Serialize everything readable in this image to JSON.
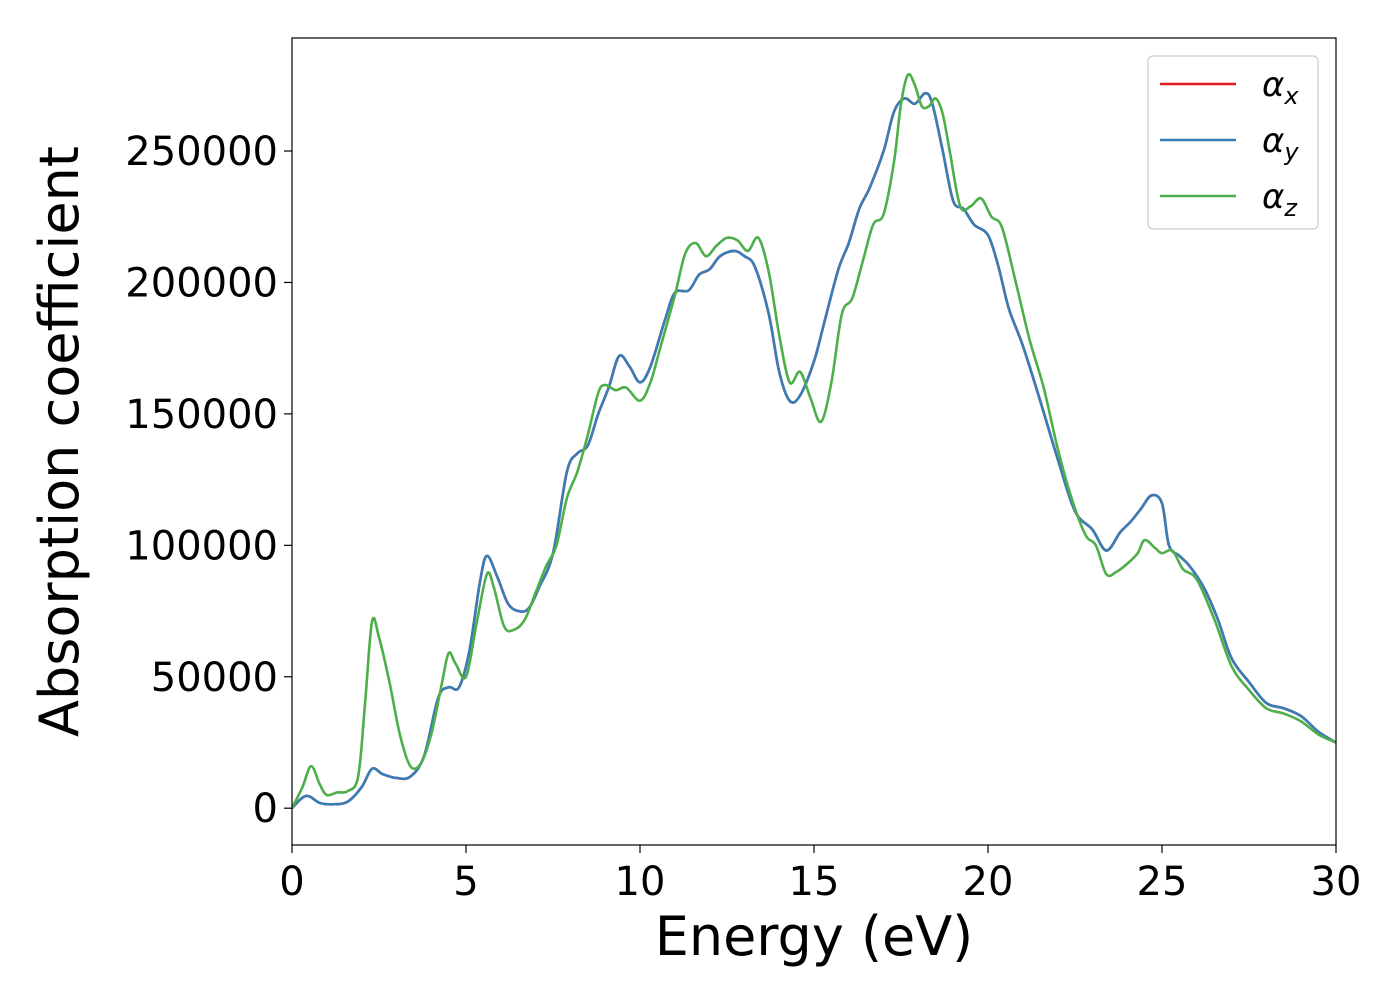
{
  "chart_data": {
    "type": "line",
    "title": "",
    "xlabel": "Energy (eV)",
    "ylabel": "Absorption coefficient",
    "xlim": [
      0,
      30
    ],
    "ylim": [
      -14000,
      293000
    ],
    "xticks": [
      0,
      5,
      10,
      15,
      20,
      25,
      30
    ],
    "yticks": [
      0,
      50000,
      100000,
      150000,
      200000,
      250000
    ],
    "xtick_labels": [
      "0",
      "5",
      "10",
      "15",
      "20",
      "25",
      "30"
    ],
    "ytick_labels": [
      "0",
      "50000",
      "100000",
      "150000",
      "200000",
      "250000"
    ],
    "grid": false,
    "legend_position": "top-right",
    "series": [
      {
        "name": "α",
        "subscript": "x",
        "color": "#e41a1c",
        "x": [
          0,
          0.3,
          0.5,
          0.8,
          1.2,
          1.6,
          2.0,
          2.3,
          2.6,
          3.0,
          3.4,
          3.8,
          4.2,
          4.5,
          4.8,
          5.1,
          5.4,
          5.6,
          5.9,
          6.2,
          6.5,
          6.8,
          7.1,
          7.5,
          7.9,
          8.2,
          8.5,
          8.8,
          9.1,
          9.4,
          9.7,
          10.0,
          10.3,
          10.7,
          11.0,
          11.4,
          11.7,
          12.0,
          12.3,
          12.7,
          13.0,
          13.3,
          13.7,
          14.0,
          14.3,
          14.6,
          15.0,
          15.3,
          15.7,
          16.0,
          16.3,
          16.6,
          17.0,
          17.3,
          17.6,
          17.9,
          18.2,
          18.4,
          18.7,
          19.0,
          19.3,
          19.6,
          20.0,
          20.3,
          20.6,
          21.0,
          21.5,
          22.0,
          22.5,
          23.0,
          23.4,
          23.8,
          24.1,
          24.4,
          24.7,
          25.0,
          25.2,
          25.5,
          25.8,
          26.2,
          26.6,
          27.0,
          27.5,
          28.0,
          28.5,
          29.0,
          29.5,
          30.0
        ],
        "values": [
          0,
          4000,
          4500,
          2000,
          1500,
          2500,
          8000,
          15000,
          13000,
          11500,
          12000,
          20000,
          42000,
          46000,
          46000,
          60000,
          86000,
          96000,
          88000,
          78000,
          75000,
          76000,
          84000,
          97000,
          128000,
          135000,
          138000,
          150000,
          160000,
          172000,
          168000,
          162000,
          168000,
          185000,
          196000,
          197000,
          203000,
          205000,
          210000,
          212000,
          210000,
          206000,
          188000,
          166000,
          155000,
          157000,
          170000,
          185000,
          205000,
          215000,
          228000,
          236000,
          250000,
          265000,
          270000,
          268000,
          272000,
          268000,
          250000,
          231000,
          228000,
          222000,
          218000,
          206000,
          190000,
          176000,
          155000,
          133000,
          113000,
          106000,
          98000,
          105000,
          109000,
          114000,
          119000,
          116000,
          100000,
          96000,
          92000,
          84000,
          72000,
          57000,
          48000,
          40000,
          38000,
          35000,
          29000,
          25000
        ]
      },
      {
        "name": "α",
        "subscript": "y",
        "color": "#377eb8",
        "x": [
          0,
          0.3,
          0.5,
          0.8,
          1.2,
          1.6,
          2.0,
          2.3,
          2.6,
          3.0,
          3.4,
          3.8,
          4.2,
          4.5,
          4.8,
          5.1,
          5.4,
          5.6,
          5.9,
          6.2,
          6.5,
          6.8,
          7.1,
          7.5,
          7.9,
          8.2,
          8.5,
          8.8,
          9.1,
          9.4,
          9.7,
          10.0,
          10.3,
          10.7,
          11.0,
          11.4,
          11.7,
          12.0,
          12.3,
          12.7,
          13.0,
          13.3,
          13.7,
          14.0,
          14.3,
          14.6,
          15.0,
          15.3,
          15.7,
          16.0,
          16.3,
          16.6,
          17.0,
          17.3,
          17.6,
          17.9,
          18.2,
          18.4,
          18.7,
          19.0,
          19.3,
          19.6,
          20.0,
          20.3,
          20.6,
          21.0,
          21.5,
          22.0,
          22.5,
          23.0,
          23.4,
          23.8,
          24.1,
          24.4,
          24.7,
          25.0,
          25.2,
          25.5,
          25.8,
          26.2,
          26.6,
          27.0,
          27.5,
          28.0,
          28.5,
          29.0,
          29.5,
          30.0
        ],
        "values": [
          0,
          4000,
          4500,
          2000,
          1500,
          2500,
          8000,
          15000,
          13000,
          11500,
          12000,
          20000,
          42000,
          46000,
          46000,
          60000,
          86000,
          96000,
          88000,
          78000,
          75000,
          76000,
          84000,
          97000,
          128000,
          135000,
          138000,
          150000,
          160000,
          172000,
          168000,
          162000,
          168000,
          185000,
          196000,
          197000,
          203000,
          205000,
          210000,
          212000,
          210000,
          206000,
          188000,
          166000,
          155000,
          157000,
          170000,
          185000,
          205000,
          215000,
          228000,
          236000,
          250000,
          265000,
          270000,
          268000,
          272000,
          268000,
          250000,
          231000,
          228000,
          222000,
          218000,
          206000,
          190000,
          176000,
          155000,
          133000,
          113000,
          106000,
          98000,
          105000,
          109000,
          114000,
          119000,
          116000,
          100000,
          96000,
          92000,
          84000,
          72000,
          57000,
          48000,
          40000,
          38000,
          35000,
          29000,
          25000
        ]
      },
      {
        "name": "α",
        "subscript": "z",
        "color": "#4daf4a",
        "x": [
          0,
          0.3,
          0.55,
          0.8,
          1.0,
          1.3,
          1.6,
          1.9,
          2.1,
          2.3,
          2.5,
          2.8,
          3.1,
          3.4,
          3.7,
          4.0,
          4.3,
          4.5,
          4.7,
          5.0,
          5.3,
          5.6,
          5.8,
          6.1,
          6.4,
          6.7,
          7.0,
          7.3,
          7.6,
          7.9,
          8.2,
          8.5,
          8.8,
          9.0,
          9.3,
          9.6,
          10.0,
          10.3,
          10.6,
          11.0,
          11.3,
          11.6,
          11.9,
          12.2,
          12.5,
          12.8,
          13.1,
          13.4,
          13.7,
          14.0,
          14.3,
          14.6,
          14.9,
          15.2,
          15.5,
          15.8,
          16.1,
          16.4,
          16.7,
          17.0,
          17.3,
          17.5,
          17.7,
          17.9,
          18.1,
          18.3,
          18.5,
          18.7,
          18.9,
          19.2,
          19.5,
          19.8,
          20.1,
          20.4,
          20.8,
          21.2,
          21.6,
          22.0,
          22.4,
          22.8,
          23.1,
          23.4,
          23.7,
          24.0,
          24.3,
          24.5,
          24.8,
          25.0,
          25.3,
          25.6,
          26.0,
          26.5,
          27.0,
          27.5,
          28.0,
          28.5,
          29.0,
          29.5,
          30.0
        ],
        "values": [
          0,
          8000,
          16000,
          9000,
          5000,
          6000,
          6500,
          12000,
          40000,
          71000,
          65000,
          48000,
          28000,
          16000,
          17000,
          28000,
          47000,
          59000,
          55000,
          50000,
          70000,
          89000,
          84000,
          69000,
          68000,
          72000,
          82000,
          92000,
          100000,
          118000,
          128000,
          142000,
          158000,
          161000,
          159000,
          160000,
          155000,
          162000,
          176000,
          195000,
          211000,
          215000,
          210000,
          214000,
          217000,
          216000,
          212000,
          217000,
          204000,
          180000,
          162000,
          166000,
          156000,
          147000,
          162000,
          188000,
          194000,
          208000,
          222000,
          226000,
          246000,
          268000,
          279000,
          275000,
          267000,
          267000,
          270000,
          264000,
          250000,
          229000,
          229000,
          232000,
          225000,
          221000,
          200000,
          178000,
          160000,
          137000,
          118000,
          104000,
          100000,
          89000,
          90000,
          93000,
          97000,
          102000,
          99000,
          97000,
          98000,
          91000,
          87000,
          72000,
          54000,
          45000,
          38000,
          36000,
          33000,
          28000,
          25000
        ]
      }
    ]
  }
}
